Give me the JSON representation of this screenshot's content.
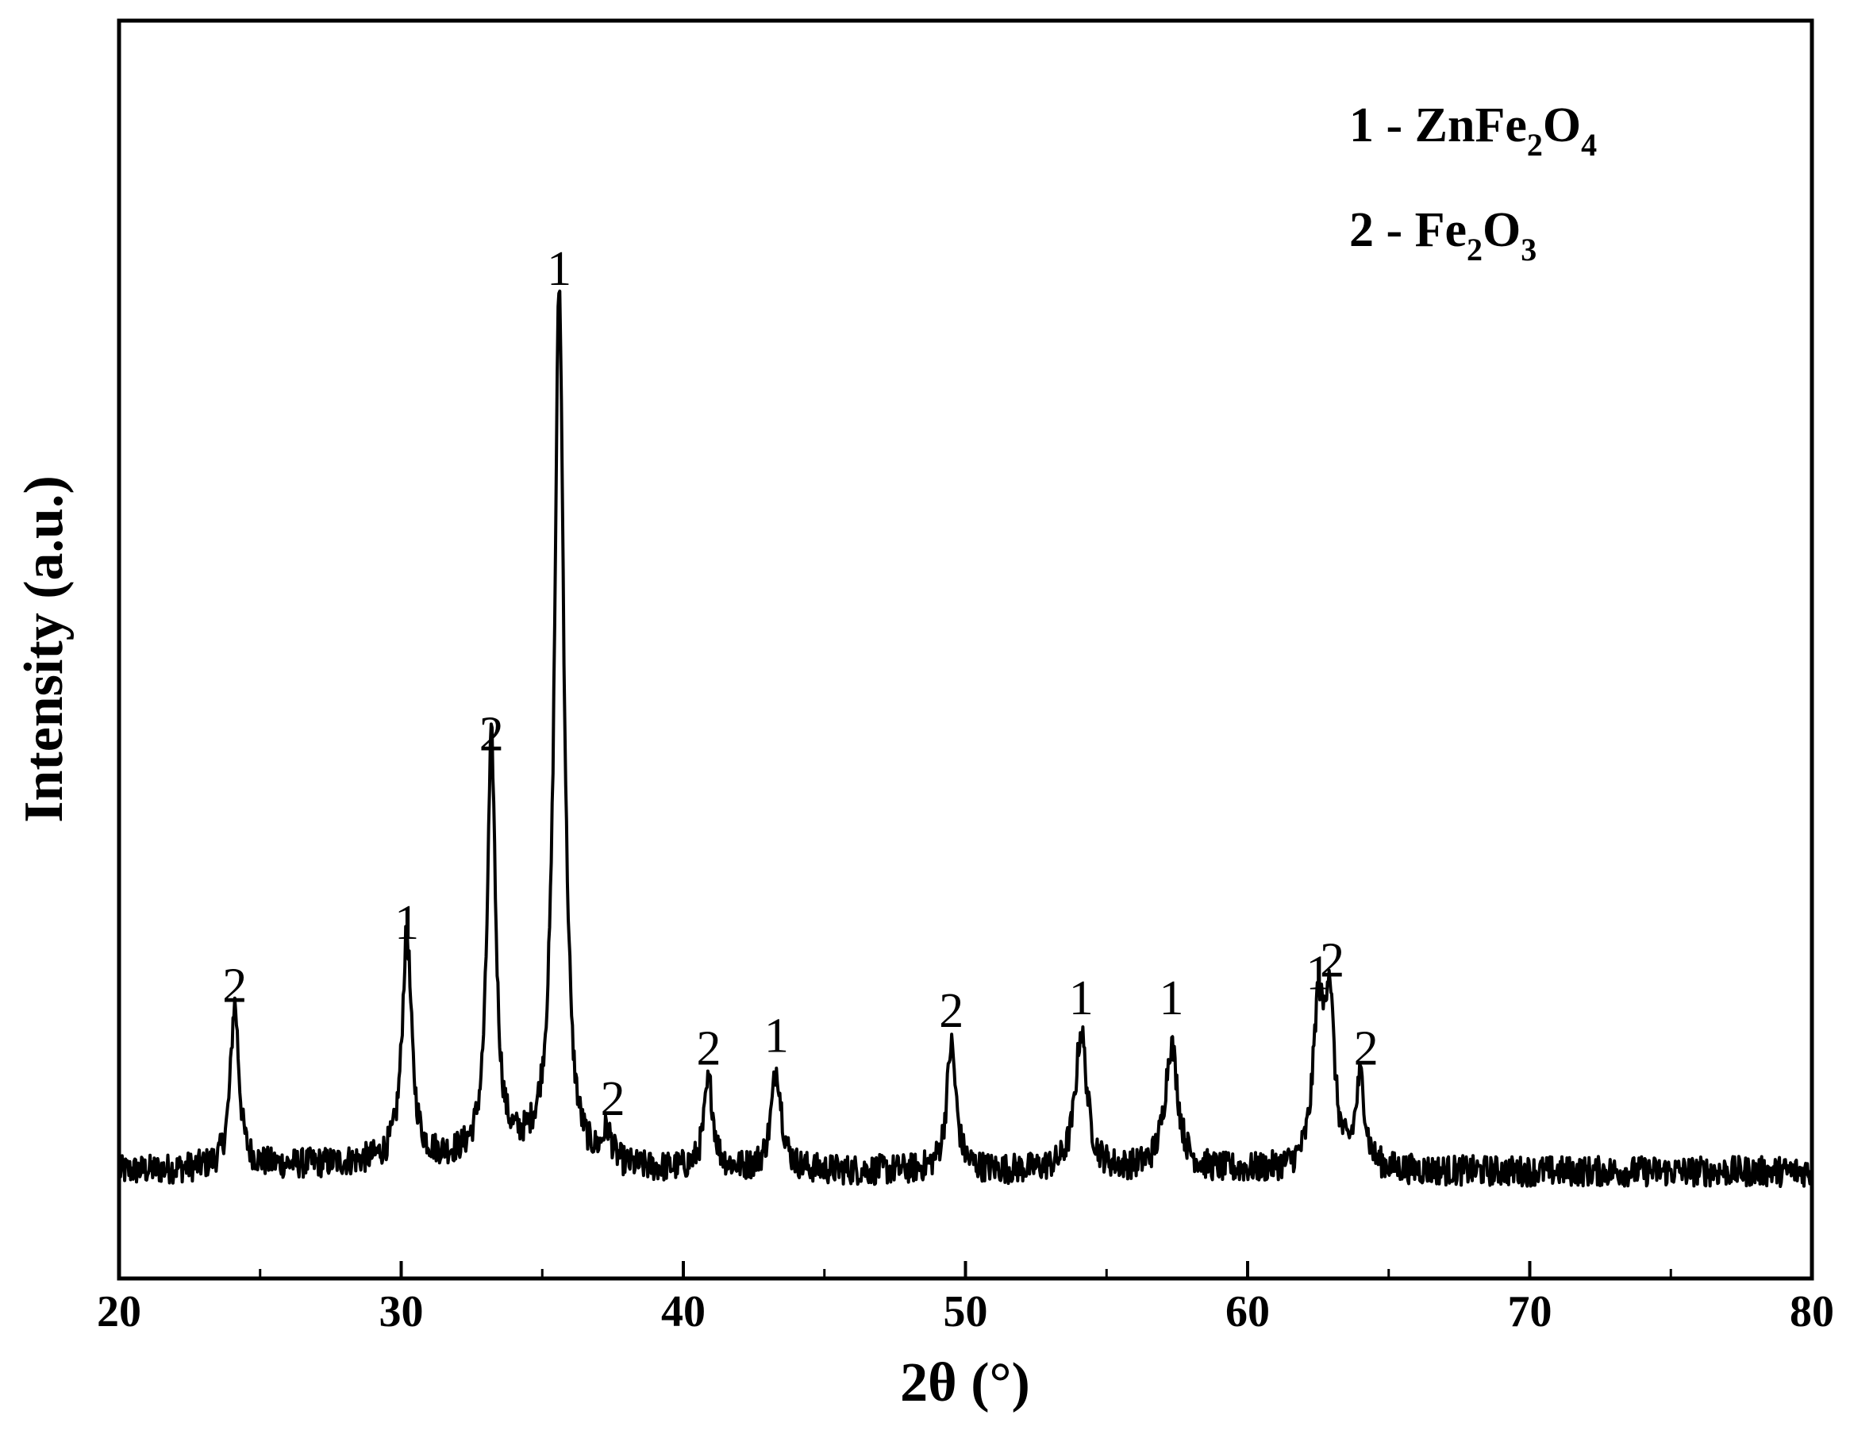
{
  "chart_data": {
    "type": "line",
    "title": "",
    "xlabel": "2θ (°)",
    "ylabel": "Intensity (a.u.)",
    "xlim": [
      20,
      80
    ],
    "ylim": [
      0,
      1
    ],
    "xticks": [
      "20",
      "30",
      "40",
      "50",
      "60",
      "70",
      "80"
    ],
    "yticks": [],
    "grid": false,
    "legend_position": "top-right",
    "legend": [
      {
        "marker": "1",
        "separator": " - ",
        "formula": [
          {
            "t": "ZnFe",
            "sub": false
          },
          {
            "t": "2",
            "sub": true
          },
          {
            "t": "O",
            "sub": false
          },
          {
            "t": "4",
            "sub": true
          }
        ]
      },
      {
        "marker": "2",
        "separator": " - ",
        "formula": [
          {
            "t": "Fe",
            "sub": false
          },
          {
            "t": "2",
            "sub": true
          },
          {
            "t": "O",
            "sub": false
          },
          {
            "t": "3",
            "sub": true
          }
        ]
      }
    ],
    "baseline": 0.085,
    "noise_amplitude": 0.012,
    "series": [
      {
        "color": "#000000",
        "peaks": [
          {
            "x": 24.1,
            "height": 0.13,
            "width": 0.18
          },
          {
            "x": 30.2,
            "height": 0.18,
            "width": 0.2
          },
          {
            "x": 33.2,
            "height": 0.33,
            "width": 0.18
          },
          {
            "x": 35.6,
            "height": 0.69,
            "width": 0.2
          },
          {
            "x": 37.3,
            "height": 0.025,
            "width": 0.2
          },
          {
            "x": 40.9,
            "height": 0.07,
            "width": 0.2
          },
          {
            "x": 43.3,
            "height": 0.08,
            "width": 0.22
          },
          {
            "x": 49.5,
            "height": 0.1,
            "width": 0.2
          },
          {
            "x": 54.1,
            "height": 0.11,
            "width": 0.25
          },
          {
            "x": 57.3,
            "height": 0.1,
            "width": 0.28
          },
          {
            "x": 62.5,
            "height": 0.12,
            "width": 0.22
          },
          {
            "x": 62.9,
            "height": 0.13,
            "width": 0.2
          },
          {
            "x": 64.0,
            "height": 0.07,
            "width": 0.2
          }
        ]
      }
    ],
    "peak_labels": [
      {
        "x": 24.1,
        "y": 0.22,
        "text": "2"
      },
      {
        "x": 30.2,
        "y": 0.27,
        "text": "1"
      },
      {
        "x": 33.2,
        "y": 0.42,
        "text": "2"
      },
      {
        "x": 35.6,
        "y": 0.79,
        "text": "1"
      },
      {
        "x": 37.5,
        "y": 0.13,
        "text": "2"
      },
      {
        "x": 40.9,
        "y": 0.17,
        "text": "2"
      },
      {
        "x": 43.3,
        "y": 0.18,
        "text": "1"
      },
      {
        "x": 49.5,
        "y": 0.2,
        "text": "2"
      },
      {
        "x": 54.1,
        "y": 0.21,
        "text": "1"
      },
      {
        "x": 57.3,
        "y": 0.21,
        "text": "1"
      },
      {
        "x": 62.5,
        "y": 0.23,
        "text": "1"
      },
      {
        "x": 63.0,
        "y": 0.24,
        "text": "2"
      },
      {
        "x": 64.2,
        "y": 0.17,
        "text": "2"
      }
    ]
  }
}
